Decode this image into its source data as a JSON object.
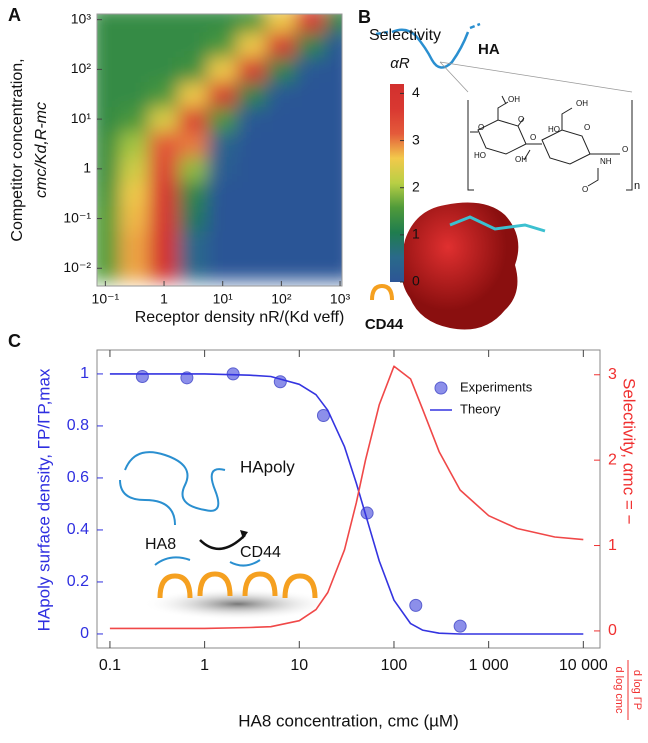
{
  "chart_data": [
    {
      "panel": "A",
      "type": "heatmap",
      "xlabel": "Receptor density  nR/(Kd veff)",
      "ylabel": [
        "Competitor concentration,",
        "cmc/Kd,R-mc"
      ],
      "colorbar_title": [
        "Selectivity",
        "αR"
      ],
      "xscale": "log",
      "yscale": "log",
      "xlim": [
        0.072,
        1080
      ],
      "ylim": [
        0.0044,
        1300
      ],
      "xticks": [
        {
          "value": 0.1,
          "label": "10⁻¹"
        },
        1,
        {
          "value": 10,
          "label": "10¹"
        },
        {
          "value": 100,
          "label": "10²"
        },
        {
          "value": 1000,
          "label": "10³"
        }
      ],
      "yticks": [
        {
          "value": 0.01,
          "label": "10⁻²"
        },
        {
          "value": 0.1,
          "label": "10⁻¹"
        },
        1,
        {
          "value": 10,
          "label": "10¹"
        },
        {
          "value": 100,
          "label": "10²"
        },
        {
          "value": 1000,
          "label": "10³"
        }
      ],
      "clim": [
        0,
        4.2
      ],
      "cticks": [
        0,
        1,
        2,
        3,
        4
      ],
      "colors": [
        "#2c5596",
        "#2a6a8a",
        "#1f7d4e",
        "#4f9a3a",
        "#b9cf45",
        "#f2c94b",
        "#e45a3a",
        "#d93831",
        "#d2302e"
      ],
      "x": [
        0.1,
        0.316,
        1,
        3.16,
        10,
        31.6,
        100,
        316,
        1000
      ],
      "y": [
        0.01,
        0.0316,
        0.1,
        0.316,
        1,
        3.16,
        10,
        31.6,
        100,
        316,
        1000
      ],
      "z": [
        [
          1.6,
          2.8,
          4.0,
          0.5,
          0,
          0,
          0,
          0,
          0
        ],
        [
          1.6,
          2.8,
          4.0,
          0.5,
          0,
          0,
          0,
          0,
          0
        ],
        [
          1.6,
          2.7,
          3.9,
          0.9,
          0,
          0,
          0,
          0,
          0
        ],
        [
          1.5,
          2.6,
          3.8,
          1.2,
          0,
          0,
          0,
          0,
          0
        ],
        [
          1.4,
          2.3,
          3.5,
          1.9,
          0.2,
          0,
          0,
          0,
          0
        ],
        [
          1.4,
          2.0,
          3.2,
          3.0,
          0.4,
          0,
          0,
          0,
          0
        ],
        [
          1.3,
          1.5,
          2.4,
          3.6,
          1.5,
          0.1,
          0,
          0,
          0
        ],
        [
          1.3,
          1.3,
          1.5,
          2.6,
          3.8,
          1.2,
          0.1,
          0,
          0
        ],
        [
          1.3,
          1.3,
          1.3,
          1.4,
          2.6,
          3.8,
          1.2,
          0.1,
          0
        ],
        [
          1.3,
          1.3,
          1.3,
          1.3,
          1.5,
          2.6,
          3.8,
          1.2,
          0.1
        ],
        [
          1.3,
          1.3,
          1.3,
          1.3,
          1.3,
          1.5,
          2.6,
          3.8,
          1.2
        ]
      ]
    },
    {
      "panel": "C",
      "type": "line",
      "xlabel": "HA8 concentration, cmc (µM)",
      "ylabel": "HApoly surface density, ΓP/ΓP,max",
      "y2label": "Selectivity, αmc = −",
      "y2label_fraction": [
        "d log ΓP",
        "d log cmc"
      ],
      "ycolor": "#2f2fe0",
      "y2color": "#f03030",
      "xscale": "log",
      "xlim": [
        0.073,
        15000
      ],
      "xticks": [
        0.1,
        1,
        10,
        100,
        {
          "value": 1000,
          "label": "1 000"
        },
        {
          "value": 10000,
          "label": "10 000"
        }
      ],
      "ylim": [
        -0.054,
        1.092
      ],
      "yticks": [
        0,
        0.2,
        0.4,
        0.6,
        0.8,
        1
      ],
      "y2lim": [
        -0.2,
        3.29
      ],
      "y2ticks": [
        0,
        1,
        2,
        3
      ],
      "legend": "upper right",
      "series": [
        {
          "name": "Experiments",
          "type": "scatter",
          "color": "#8c8fea",
          "x": [
            0.22,
            0.65,
            2,
            6.3,
            18,
            52,
            170,
            500
          ],
          "values": [
            0.99,
            0.985,
            1.0,
            0.97,
            0.84,
            0.465,
            0.11,
            0.03
          ]
        },
        {
          "name": "Theory",
          "type": "line",
          "color": "#3434e0",
          "x": [
            0.1,
            0.3,
            1,
            3,
            5,
            10,
            15,
            20,
            30,
            40,
            50,
            70,
            100,
            150,
            200,
            300,
            500,
            1000,
            2000,
            5000,
            10000
          ],
          "values": [
            1,
            1,
            1,
            0.995,
            0.99,
            0.96,
            0.92,
            0.86,
            0.72,
            0.58,
            0.46,
            0.28,
            0.13,
            0.04,
            0.015,
            0.003,
            0,
            0,
            0,
            0,
            0
          ]
        },
        {
          "type": "line",
          "axis": "y2",
          "color": "#f04848",
          "x": [
            0.1,
            0.3,
            1,
            3,
            5,
            10,
            15,
            20,
            30,
            40,
            50,
            70,
            100,
            150,
            200,
            300,
            500,
            1000,
            2000,
            5000,
            10000
          ],
          "values": [
            0.03,
            0.03,
            0.03,
            0.04,
            0.05,
            0.12,
            0.25,
            0.45,
            0.95,
            1.5,
            2.0,
            2.65,
            3.1,
            2.95,
            2.6,
            2.1,
            1.65,
            1.35,
            1.2,
            1.1,
            1.07
          ]
        }
      ],
      "annotations": [
        "HApoly",
        "HA8",
        "CD44"
      ]
    }
  ],
  "figure_b": {
    "panel": "B",
    "polymer": "HA",
    "receptor": "CD44",
    "repeat": "n",
    "structure_labels": [
      "OH",
      "O",
      "HO",
      "OH",
      "O",
      "HO",
      "OH",
      "O",
      "O",
      "NH",
      "O",
      "O"
    ]
  }
}
